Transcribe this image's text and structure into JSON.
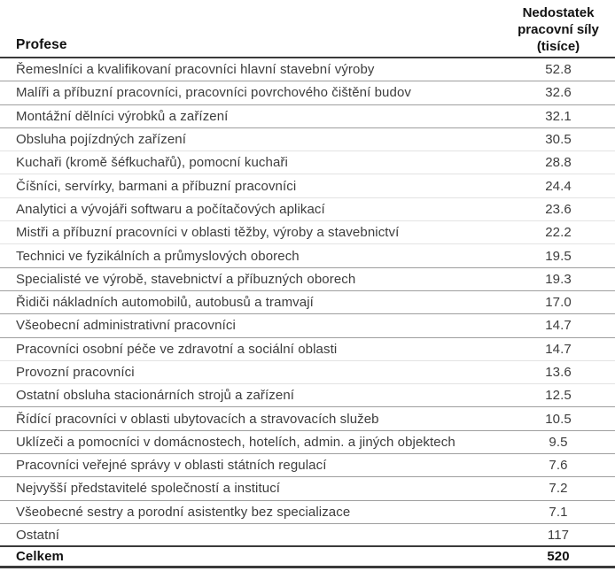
{
  "colors": {
    "rule_strong": "#9e9e9e",
    "rule_faint": "#e3e3e3",
    "rule_dark": "#3a3a3a",
    "text": "#3d3d3d",
    "heading": "#111111"
  },
  "table": {
    "header": {
      "profession_label": "Profese",
      "value_lines": [
        "Nedostatek",
        "pracovní síly",
        "(tisíce)"
      ]
    },
    "rows": [
      {
        "profession": "Řemeslníci a kvalifikovaní pracovníci hlavní stavební výroby",
        "value": "52.8",
        "rule": "strong",
        "bold": false
      },
      {
        "profession": "Malíři a příbuzní pracovníci, pracovníci povrchového čištění budov",
        "value": "32.6",
        "rule": "strong",
        "bold": false
      },
      {
        "profession": "Montážní dělníci výrobků a zařízení",
        "value": "32.1",
        "rule": "strong",
        "bold": false
      },
      {
        "profession": "Obsluha pojízdných zařízení",
        "value": "30.5",
        "rule": "faint",
        "bold": false
      },
      {
        "profession": "Kuchaři (kromě šéfkuchařů), pomocní kuchaři",
        "value": "28.8",
        "rule": "faint",
        "bold": false
      },
      {
        "profession": "Číšníci, servírky, barmani a příbuzní pracovníci",
        "value": "24.4",
        "rule": "faint",
        "bold": false
      },
      {
        "profession": "Analytici a vývojáři softwaru a počítačových aplikací",
        "value": "23.6",
        "rule": "faint",
        "bold": false
      },
      {
        "profession": "Mistři a příbuzní pracovníci v oblasti těžby, výroby a stavebnictví",
        "value": "22.2",
        "rule": "faint",
        "bold": false
      },
      {
        "profession": "Technici ve fyzikálních a průmyslových oborech",
        "value": "19.5",
        "rule": "strong",
        "bold": false
      },
      {
        "profession": "Specialisté ve výrobě, stavebnictví a příbuzných oborech",
        "value": "19.3",
        "rule": "strong",
        "bold": false
      },
      {
        "profession": "Řidiči nákladních automobilů, autobusů a tramvají",
        "value": "17.0",
        "rule": "strong",
        "bold": false
      },
      {
        "profession": "Všeobecní administrativní pracovníci",
        "value": "14.7",
        "rule": "strong",
        "bold": false
      },
      {
        "profession": "Pracovníci osobní péče ve zdravotní a sociální oblasti",
        "value": "14.7",
        "rule": "faint",
        "bold": false
      },
      {
        "profession": "Provozní pracovníci",
        "value": "13.6",
        "rule": "faint",
        "bold": false
      },
      {
        "profession": "Ostatní obsluha stacionárních strojů a zařízení",
        "value": "12.5",
        "rule": "strong",
        "bold": false
      },
      {
        "profession": "Řídící pracovníci v oblasti ubytovacích a stravovacích služeb",
        "value": "10.5",
        "rule": "strong",
        "bold": false
      },
      {
        "profession": "Uklízeči a pomocníci v domácnostech, hotelích, admin. a jiných objektech",
        "value": "9.5",
        "rule": "strong",
        "bold": false
      },
      {
        "profession": "Pracovníci veřejné správy v oblasti státních regulací",
        "value": "7.6",
        "rule": "strong",
        "bold": false
      },
      {
        "profession": "Nejvyšší představitelé společností a institucí",
        "value": "7.2",
        "rule": "strong",
        "bold": false
      },
      {
        "profession": "Všeobecné sestry a porodní asistentky bez specializace",
        "value": "7.1",
        "rule": "strong",
        "bold": false
      },
      {
        "profession": "Ostatní",
        "value": "117",
        "rule": "dark",
        "bold": false
      },
      {
        "profession": "Celkem",
        "value": "520",
        "rule": "dark-thick",
        "bold": true
      }
    ]
  }
}
